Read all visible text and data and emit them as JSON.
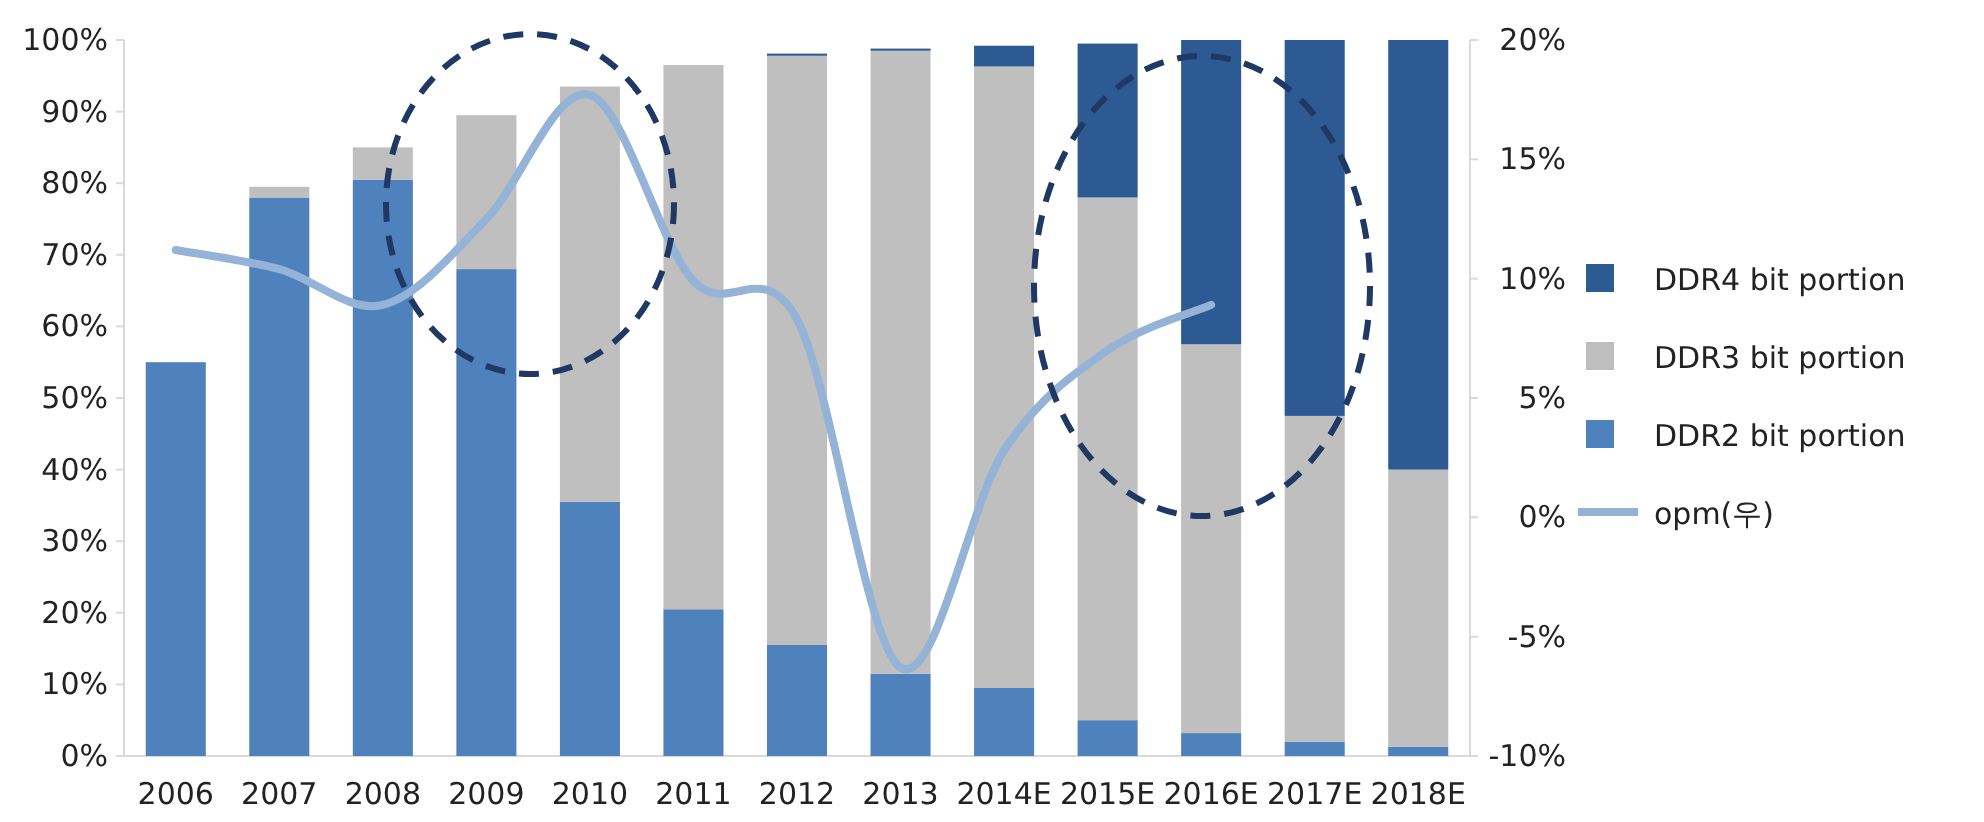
{
  "chart_data": {
    "type": "bar",
    "stacked": true,
    "legend": "right",
    "categories": [
      "2006",
      "2007",
      "2008",
      "2009",
      "2010",
      "2011",
      "2012",
      "2013",
      "2014E",
      "2015E",
      "2016E",
      "2017E",
      "2018E"
    ],
    "series": [
      {
        "name": "DDR2 bit portion",
        "color": "#4f81bd",
        "values": [
          55,
          78,
          80.5,
          68,
          35.5,
          20.5,
          15.5,
          11.5,
          9.5,
          5,
          3.2,
          2,
          1.3
        ]
      },
      {
        "name": "DDR3 bit portion",
        "color": "#bfbfbf",
        "values": [
          0,
          1.5,
          4.5,
          21.5,
          58,
          76,
          82.3,
          87,
          86.8,
          73,
          54.3,
          45.5,
          38.7
        ]
      },
      {
        "name": "DDR4 bit portion",
        "color": "#2e5a94",
        "values": [
          0,
          0,
          0,
          0,
          0,
          0,
          0.3,
          0.3,
          2.9,
          21.5,
          42.5,
          52.5,
          60
        ]
      },
      {
        "name": "opm(우)",
        "type": "line",
        "axis": "y2",
        "color": "#95b3d7",
        "values": [
          11.2,
          10.4,
          8.9,
          12.5,
          17.7,
          9.9,
          8.3,
          -6.3,
          2.8,
          7.0,
          8.9,
          null,
          null
        ]
      }
    ],
    "ylim": [
      0,
      100
    ],
    "yticks": [
      {
        "value": 0,
        "label": "0%"
      },
      {
        "value": 10,
        "label": "10%"
      },
      {
        "value": 20,
        "label": "20%"
      },
      {
        "value": 30,
        "label": "30%"
      },
      {
        "value": 40,
        "label": "40%"
      },
      {
        "value": 50,
        "label": "50%"
      },
      {
        "value": 60,
        "label": "60%"
      },
      {
        "value": 70,
        "label": "70%"
      },
      {
        "value": 80,
        "label": "80%"
      },
      {
        "value": 90,
        "label": "90%"
      },
      {
        "value": 100,
        "label": "100%"
      }
    ],
    "y2lim": [
      -10,
      20
    ],
    "y2ticks": [
      {
        "value": -10,
        "label": "-10%"
      },
      {
        "value": -5,
        "label": "-5%"
      },
      {
        "value": 0,
        "label": "0%"
      },
      {
        "value": 5,
        "label": "5%"
      },
      {
        "value": 10,
        "label": "10%"
      },
      {
        "value": 15,
        "label": "15%"
      },
      {
        "value": 20,
        "label": "20%"
      }
    ]
  }
}
